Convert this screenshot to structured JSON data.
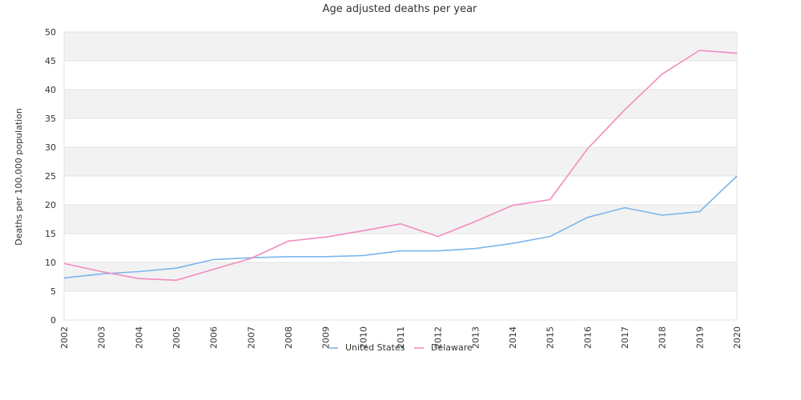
{
  "chart_data": {
    "type": "line",
    "title": "Age adjusted deaths per year",
    "xlabel": "",
    "ylabel": "Deaths per 100,000 population",
    "ylim": [
      0,
      50
    ],
    "yticks": [
      0,
      5,
      10,
      15,
      20,
      25,
      30,
      35,
      40,
      45,
      50
    ],
    "x": [
      "2002",
      "2003",
      "2004",
      "2005",
      "2006",
      "2007",
      "2008",
      "2009",
      "2010",
      "2011",
      "2012",
      "2013",
      "2014",
      "2015",
      "2016",
      "2017",
      "2018",
      "2019",
      "2020"
    ],
    "series": [
      {
        "name": "United States",
        "color": "#7cb5ec",
        "values": [
          7.3,
          8.0,
          8.4,
          9.0,
          10.5,
          10.8,
          11.0,
          11.0,
          11.2,
          12.0,
          12.0,
          12.4,
          13.3,
          14.5,
          17.8,
          19.5,
          18.2,
          18.8,
          25.0
        ]
      },
      {
        "name": "Delaware",
        "color": "#f28cbf",
        "values": [
          9.8,
          8.4,
          7.2,
          6.9,
          8.8,
          10.7,
          13.7,
          14.4,
          15.5,
          16.7,
          14.5,
          17.1,
          19.9,
          20.9,
          29.7,
          36.5,
          42.7,
          46.8,
          46.3
        ]
      }
    ],
    "grid": "alternating horizontal bands",
    "legend": "bottom-center"
  }
}
